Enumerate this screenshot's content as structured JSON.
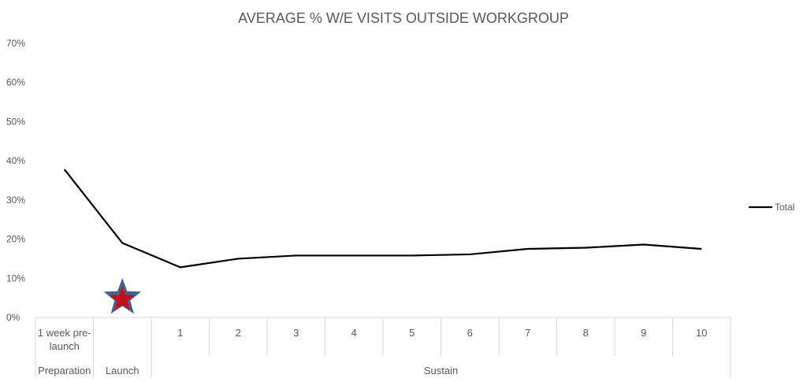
{
  "chart_data": {
    "type": "line",
    "title": "AVERAGE % W/E VISITS OUTSIDE WORKGROUP",
    "xlabel": "",
    "ylabel": "",
    "ylim": [
      0,
      70
    ],
    "yticks": [
      "0%",
      "10%",
      "20%",
      "30%",
      "40%",
      "50%",
      "60%",
      "70%"
    ],
    "categories": [
      "1 week pre-launch",
      "",
      "1",
      "2",
      "3",
      "4",
      "5",
      "6",
      "7",
      "8",
      "9",
      "10"
    ],
    "category_lines": [
      [
        "1 week pre-",
        "launch"
      ],
      [
        ""
      ],
      [
        "1"
      ],
      [
        "2"
      ],
      [
        "3"
      ],
      [
        "4"
      ],
      [
        "5"
      ],
      [
        "6"
      ],
      [
        "7"
      ],
      [
        "8"
      ],
      [
        "9"
      ],
      [
        "10"
      ]
    ],
    "groups": [
      {
        "label": "Preparation",
        "span": 1
      },
      {
        "label": "Launch",
        "span": 1
      },
      {
        "label": "Sustain",
        "span": 10
      }
    ],
    "series": [
      {
        "name": "Total",
        "color": "#000000",
        "values": [
          37.8,
          19.0,
          12.8,
          15.0,
          15.8,
          15.8,
          15.8,
          16.1,
          17.5,
          17.8,
          18.6,
          17.5
        ]
      }
    ],
    "marker": {
      "category_index": 1,
      "value": 5,
      "shape": "star",
      "fill": "#c0111b",
      "stroke": "#44618f"
    },
    "legend": "right",
    "grid": false
  }
}
